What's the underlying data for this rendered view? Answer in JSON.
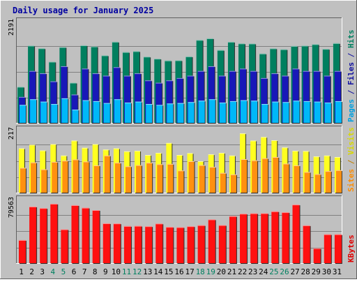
{
  "chart_data": {
    "type": "bar",
    "title": "Daily usage for January 2025",
    "categories": [
      "1",
      "2",
      "3",
      "4",
      "5",
      "6",
      "7",
      "8",
      "9",
      "10",
      "11",
      "12",
      "13",
      "14",
      "15",
      "16",
      "17",
      "18",
      "19",
      "20",
      "21",
      "22",
      "23",
      "24",
      "25",
      "26",
      "27",
      "28",
      "29",
      "30",
      "31"
    ],
    "weekend_days": [
      "4",
      "5",
      "11",
      "12",
      "18",
      "19",
      "25",
      "26"
    ],
    "panels": [
      {
        "id": "hits",
        "ymax_label": "2191",
        "ymax": 2191,
        "axis_title_parts": [
          {
            "text": "Pages",
            "color": "#00a0e0"
          },
          {
            "text": " / ",
            "color": "#1010a0"
          },
          {
            "text": "Files",
            "color": "#1010a0"
          },
          {
            "text": " / ",
            "color": "#1010a0"
          },
          {
            "text": "Hits",
            "color": "#008060"
          }
        ],
        "series": [
          {
            "name": "Hits",
            "color": "#007f5f",
            "values": [
              764,
              1637,
              1580,
              1296,
              1606,
              851,
              1644,
              1619,
              1430,
              1719,
              1501,
              1519,
              1403,
              1360,
              1322,
              1326,
              1408,
              1757,
              1792,
              1545,
              1718,
              1683,
              1681,
              1469,
              1578,
              1560,
              1630,
              1637,
              1667,
              1567,
              1690
            ]
          },
          {
            "name": "Files",
            "color": "#1818b8",
            "values": [
              550,
              1100,
              1050,
              880,
              1200,
              600,
              1150,
              1050,
              1000,
              1180,
              1000,
              1050,
              900,
              850,
              900,
              950,
              1000,
              1100,
              1200,
              1000,
              1100,
              1150,
              1100,
              950,
              1050,
              1000,
              1150,
              1100,
              1100,
              1000,
              1100
            ]
          },
          {
            "name": "Pages",
            "color": "#00b8f8",
            "values": [
              380,
              500,
              450,
              400,
              520,
              280,
              480,
              460,
              420,
              500,
              430,
              450,
              400,
              380,
              410,
              420,
              440,
              470,
              500,
              430,
              460,
              480,
              470,
              400,
              450,
              440,
              470,
              460,
              450,
              430,
              460
            ]
          }
        ]
      },
      {
        "id": "visits",
        "ymax_label": "217",
        "ymax": 217,
        "axis_title_parts": [
          {
            "text": "Sites",
            "color": "#ff8c00"
          },
          {
            "text": " / ",
            "color": "#c08000"
          },
          {
            "text": "Visits",
            "color": "#d8d800"
          }
        ],
        "series": [
          {
            "name": "Visits",
            "color": "#ffff20",
            "values": [
              148,
              160,
              141,
              162,
              124,
              174,
              150,
              162,
              144,
              148,
              138,
              140,
              126,
              133,
              166,
              126,
              132,
              105,
              128,
              133,
              124,
              198,
              174,
              186,
              175,
              151,
              140,
              139,
              121,
              124,
              119
            ]
          },
          {
            "name": "Sites",
            "color": "#ff9010",
            "values": [
              83,
              101,
              78,
              103,
              107,
              111,
              104,
              91,
              124,
              100,
              88,
              92,
              100,
              95,
              96,
              74,
              105,
              92,
              86,
              66,
              61,
              112,
              108,
              115,
              119,
              97,
              91,
              69,
              62,
              72,
              75
            ]
          }
        ]
      },
      {
        "id": "kbytes",
        "ymax_label": "79563",
        "ymax": 79563,
        "axis_title_parts": [
          {
            "text": "KBytes",
            "color": "#e00000"
          }
        ],
        "series": [
          {
            "name": "KBytes",
            "color": "#ff1010",
            "values": [
              28000,
              68600,
              66700,
              72000,
              41000,
              70300,
              67200,
              64300,
              48300,
              48100,
              45000,
              45200,
              44700,
              48000,
              43900,
              43600,
              44700,
              46000,
              53000,
              46100,
              57000,
              59900,
              60400,
              60500,
              62800,
              61700,
              71000,
              45800,
              18000,
              35000,
              35000
            ]
          }
        ]
      }
    ]
  }
}
